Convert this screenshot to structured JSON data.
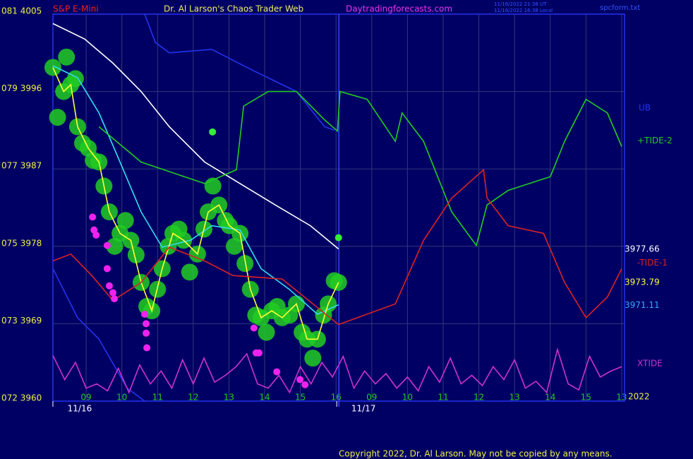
{
  "chart_data": {
    "type": "line",
    "title": "Dr. Al Larson's Chaos Trader Web",
    "instrument": "S&P E-Mini",
    "website": "Daytradingforecasts.com",
    "timestamps": [
      "11/16/2022 21:38 UT",
      "11/16/2022 16:38 Local"
    ],
    "file": "spcform.txt",
    "copyright": "Copyright 2022, Dr. Al Larson. May not be copied by any means.",
    "year_label": "2022",
    "date_labels": [
      {
        "x": -0.18,
        "label": "11/16"
      },
      {
        "x": 7.77,
        "label": "11/17"
      }
    ],
    "day_separator": 7.08,
    "xlim": [
      -0.93,
      15.08
    ],
    "ylim": [
      3960,
      4005
    ],
    "yticks": [
      {
        "value": 4005,
        "label": "081 4005"
      },
      {
        "value": 3996,
        "label": "079 3996"
      },
      {
        "value": 3987,
        "label": "077 3987"
      },
      {
        "value": 3978,
        "label": "075 3978"
      },
      {
        "value": 3969,
        "label": "073 3969"
      },
      {
        "value": 3960,
        "label": "072 3960"
      }
    ],
    "xticks": [
      {
        "value": 0,
        "label": "09"
      },
      {
        "value": 1,
        "label": "10"
      },
      {
        "value": 2,
        "label": "11"
      },
      {
        "value": 3,
        "label": "12"
      },
      {
        "value": 4,
        "label": "13"
      },
      {
        "value": 5,
        "label": "14"
      },
      {
        "value": 6,
        "label": "15"
      },
      {
        "value": 7,
        "label": "16"
      },
      {
        "value": 8,
        "label": "09"
      },
      {
        "value": 9,
        "label": "10"
      },
      {
        "value": 10,
        "label": "11"
      },
      {
        "value": 11,
        "label": "12"
      },
      {
        "value": 12,
        "label": "13"
      },
      {
        "value": 13,
        "label": "14"
      },
      {
        "value": 14,
        "label": "15"
      },
      {
        "value": 15,
        "label": "13"
      }
    ],
    "grid": true,
    "series": [
      {
        "style": "dots",
        "color": "#22cc22",
        "x": [
          -0.93,
          -0.8,
          -0.63,
          -0.55,
          -0.43,
          -0.3,
          -0.24,
          -0.1,
          0.06,
          0.2,
          0.36,
          0.5,
          0.65,
          0.8,
          0.95,
          1.1,
          1.25,
          1.4,
          1.54,
          1.7,
          1.84,
          2.0,
          2.13,
          2.3,
          2.43,
          2.6,
          2.73,
          2.9,
          3.12,
          3.3,
          3.42,
          3.55,
          3.72,
          3.9,
          4.01,
          4.15,
          4.31,
          4.45,
          4.6,
          4.75,
          4.9,
          5.05,
          5.2,
          5.35,
          5.49,
          5.7,
          5.89,
          6.05,
          6.19,
          6.35,
          6.48,
          6.65,
          6.78,
          6.95,
          7.07
        ],
        "values": [
          3998.8,
          3993,
          3996,
          4000,
          3996.8,
          3997.5,
          3991.9,
          3990,
          3989.4,
          3988,
          3987.8,
          3985,
          3982,
          3978,
          3979.5,
          3981,
          3978.7,
          3977,
          3973.8,
          3971,
          3970.5,
          3973,
          3975.4,
          3978,
          3979.5,
          3980,
          3978.7,
          3975,
          3977.1,
          3980,
          3982,
          3985,
          3982.8,
          3981,
          3980.4,
          3978,
          3979.5,
          3976,
          3973,
          3970,
          3969.7,
          3968,
          3970.5,
          3971,
          3969.7,
          3970,
          3971.3,
          3968,
          3967.2,
          3965,
          3967.2,
          3970,
          3971.3,
          3974,
          3973.8
        ]
      },
      {
        "color": "#ffffff",
        "last_value": 3977.66,
        "x": [
          -0.93,
          -0.04,
          0.75,
          1.54,
          2.33,
          3.32,
          4.31,
          5.3,
          6.28,
          7.07
        ],
        "values": [
          4003.9,
          4002.1,
          3999.3,
          3996,
          3991.9,
          3987.8,
          3985.3,
          3982.8,
          3980.4,
          3977.7
        ]
      },
      {
        "color": "#33ddee",
        "last_value": 3971.11,
        "x": [
          -0.93,
          -0.24,
          0.36,
          0.95,
          1.54,
          2.13,
          2.92,
          3.52,
          4.31,
          4.9,
          5.69,
          6.48,
          7.07
        ],
        "values": [
          3999,
          3997.6,
          3993.5,
          3987.8,
          3982,
          3977.9,
          3978.7,
          3980.4,
          3979.9,
          3975.4,
          3973,
          3970.1,
          3971.2
        ]
      },
      {
        "color": "#ffff33",
        "last_value": 3973.79,
        "x": [
          -0.93,
          -0.63,
          -0.43,
          -0.24,
          0.06,
          0.36,
          0.65,
          0.95,
          1.25,
          1.54,
          1.84,
          2.13,
          2.43,
          2.73,
          3.12,
          3.42,
          3.72,
          4.01,
          4.31,
          4.6,
          4.9,
          5.2,
          5.49,
          5.89,
          6.19,
          6.48,
          6.78,
          7.07
        ],
        "values": [
          3998.8,
          3996,
          3996.8,
          3991.9,
          3989.4,
          3987.8,
          3982,
          3979.5,
          3978.7,
          3973.8,
          3970.5,
          3975.4,
          3979.5,
          3978.7,
          3977.1,
          3982,
          3982.8,
          3980.4,
          3979.5,
          3973,
          3969.7,
          3970.5,
          3969.7,
          3971.3,
          3967.2,
          3967.2,
          3971.3,
          3973.8
        ]
      },
      {
        "name": "UB",
        "color": "#2233ee",
        "x": [
          1.64,
          1.94,
          2.33,
          3.52,
          4.7,
          5.89,
          6.68,
          6.95
        ],
        "values": [
          4005,
          4001.7,
          4000.5,
          4000.9,
          3998.4,
          3996,
          3991.9,
          3991.5
        ]
      },
      {
        "color": "#2233ee",
        "x": [
          -0.93,
          -0.24,
          0.36,
          1.15,
          1.64
        ],
        "values": [
          3975.4,
          3969.7,
          3967.2,
          3961.5,
          3960
        ]
      },
      {
        "name": "+TIDE-2",
        "color": "#22cc22",
        "x": [
          0.36,
          1.54,
          3.32,
          4.21,
          4.41,
          5.1,
          5.89,
          6.68,
          7.04,
          7.11,
          7.87,
          8.66,
          8.85,
          9.45,
          10.24,
          10.93,
          11.23,
          11.82,
          13.0,
          13.4,
          14.0,
          14.6,
          15.0
        ],
        "values": [
          3991.9,
          3987.8,
          3985.3,
          3986.9,
          3994.3,
          3996,
          3996,
          3992.7,
          3991.4,
          3996,
          3995.1,
          3990.2,
          3993.5,
          3990.2,
          3982,
          3978.1,
          3982.8,
          3984.5,
          3986.1,
          3990.2,
          3995.1,
          3993.5,
          3989.6
        ]
      },
      {
        "name": "-TIDE-1",
        "color": "#dd2222",
        "x": [
          -0.93,
          -0.43,
          0.16,
          0.75,
          1.54,
          2.33,
          3.32,
          4.11,
          5.49,
          7.07,
          8.66,
          9.45,
          10.24,
          11.13,
          11.23,
          11.82,
          12.81,
          13.4,
          14.0,
          14.6,
          15.0
        ],
        "values": [
          3976.3,
          3977.1,
          3974.6,
          3971.7,
          3973.8,
          3977.9,
          3976.3,
          3974.6,
          3974.2,
          3968.9,
          3971.3,
          3978.7,
          3983.6,
          3986.9,
          3983.6,
          3980.4,
          3979.5,
          3973.8,
          3969.7,
          3972.1,
          3975.4
        ]
      },
      {
        "name": "XTIDE",
        "color": "#cc33cc",
        "x": [
          -0.93,
          -0.6,
          -0.3,
          0,
          0.3,
          0.6,
          0.9,
          1.2,
          1.5,
          1.8,
          2.1,
          2.4,
          2.7,
          3.0,
          3.3,
          3.6,
          3.9,
          4.2,
          4.5,
          4.8,
          5.1,
          5.4,
          5.7,
          6.0,
          6.3,
          6.6,
          6.9,
          7.2,
          7.5,
          7.8,
          8.1,
          8.4,
          8.7,
          9.0,
          9.3,
          9.6,
          9.9,
          10.2,
          10.5,
          10.8,
          11.1,
          11.4,
          11.7,
          12.0,
          12.3,
          12.6,
          12.9,
          13.2,
          13.5,
          13.8,
          14.1,
          14.4,
          14.7,
          15.0
        ],
        "values": [
          3965.3,
          3962.5,
          3964.5,
          3961.5,
          3962,
          3961.2,
          3963.8,
          3961,
          3964.2,
          3962,
          3963.5,
          3961.5,
          3964.8,
          3962,
          3965,
          3962.2,
          3963,
          3964,
          3965.5,
          3962,
          3961.5,
          3963,
          3961,
          3964,
          3962,
          3964.5,
          3962.8,
          3965.2,
          3961.5,
          3963.5,
          3962,
          3963.2,
          3961.5,
          3962.8,
          3961.2,
          3964,
          3962.2,
          3965,
          3962,
          3963,
          3961.8,
          3964,
          3962.5,
          3964.8,
          3961.5,
          3962.3,
          3961,
          3966,
          3962,
          3961.3,
          3965.2,
          3962.8,
          3963.5,
          3964
        ]
      },
      {
        "style": "dots",
        "color": "#ee22ee",
        "x": [
          0.18,
          0.22,
          0.28,
          0.59,
          0.59,
          0.65,
          0.75,
          0.79,
          1.64,
          1.68,
          1.68,
          1.7,
          4.7,
          4.76,
          4.84,
          5.34,
          5.99,
          6.13
        ],
        "values": [
          3981.4,
          3979.9,
          3979.3,
          3978.1,
          3975.4,
          3973.4,
          3972.6,
          3971.9,
          3970.1,
          3969,
          3967.9,
          3966.2,
          3968.5,
          3965.6,
          3965.6,
          3963.4,
          3962.5,
          3961.9
        ]
      },
      {
        "style": "dots",
        "color": "#33ee33",
        "x": [
          3.54,
          7.07
        ],
        "values": [
          3991.3,
          3979
        ]
      }
    ]
  }
}
